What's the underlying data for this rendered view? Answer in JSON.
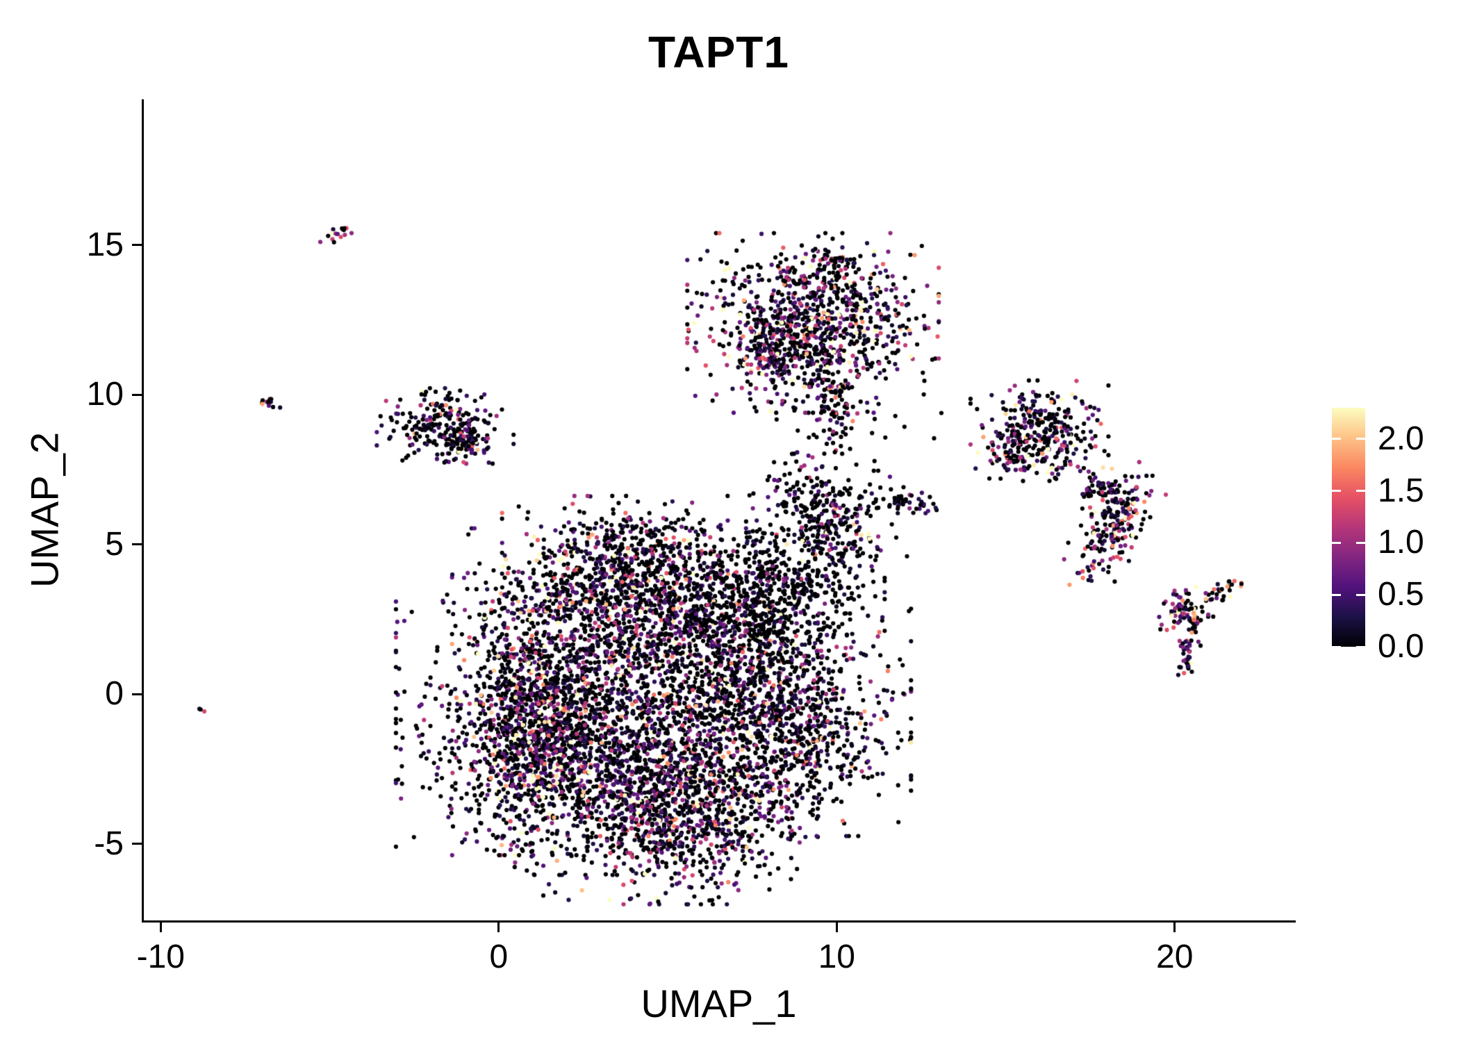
{
  "title": "TAPT1",
  "axes": {
    "xlabel": "UMAP_1",
    "ylabel": "UMAP_2",
    "xticks": [
      "-10",
      "0",
      "10",
      "20"
    ],
    "xtick_values": [
      -10,
      0,
      10,
      20
    ],
    "yticks": [
      "-5",
      "0",
      "5",
      "10",
      "15"
    ],
    "ytick_values": [
      -5,
      0,
      5,
      10,
      15
    ]
  },
  "colorbar": {
    "tick_labels": [
      "2.0",
      "1.5",
      "1.0",
      "0.5",
      "0.0"
    ],
    "tick_values": [
      2.0,
      1.5,
      1.0,
      0.5,
      0.0
    ],
    "vmin": 0.0,
    "vmax": 2.3,
    "colormap": [
      "#000004",
      "#1d1147",
      "#51127c",
      "#822681",
      "#b63679",
      "#e65164",
      "#fb8861",
      "#fec287",
      "#fcfdbf"
    ]
  },
  "chart_data": {
    "type": "scatter",
    "title": "TAPT1",
    "xlabel": "UMAP_1",
    "ylabel": "UMAP_2",
    "xlim": [
      -10.5,
      23.52
    ],
    "ylim": [
      -7.56,
      19.87
    ],
    "legend_position": "right",
    "grid": false,
    "color_scale": "magma",
    "seed": 42,
    "point_radius": 3.1,
    "clusters": [
      {
        "name": "main-core",
        "cx": 3.2,
        "cy": -1.0,
        "rx": 2.6,
        "ry": 2.1,
        "n": 2200,
        "zero_frac": 0.52,
        "mean": 0.62
      },
      {
        "name": "main-lower-lobe",
        "cx": 5.4,
        "cy": -3.9,
        "rx": 1.7,
        "ry": 1.3,
        "n": 900,
        "zero_frac": 0.42,
        "mean": 0.8
      },
      {
        "name": "main-left-edge",
        "cx": 1.0,
        "cy": -1.3,
        "rx": 1.0,
        "ry": 1.7,
        "n": 700,
        "zero_frac": 0.45,
        "mean": 0.85
      },
      {
        "name": "main-upper-band",
        "cx": 3.9,
        "cy": 2.9,
        "rx": 2.2,
        "ry": 1.1,
        "n": 900,
        "zero_frac": 0.45,
        "mean": 0.75
      },
      {
        "name": "main-top-cap",
        "cx": 3.7,
        "cy": 4.7,
        "rx": 1.5,
        "ry": 0.8,
        "n": 420,
        "zero_frac": 0.5,
        "mean": 0.7
      },
      {
        "name": "main-right-connector",
        "cx": 6.9,
        "cy": 1.4,
        "rx": 1.1,
        "ry": 1.7,
        "n": 480,
        "zero_frac": 0.55,
        "mean": 0.6
      },
      {
        "name": "right-lobe",
        "cx": 8.6,
        "cy": -0.9,
        "rx": 1.5,
        "ry": 1.6,
        "n": 800,
        "zero_frac": 0.55,
        "mean": 0.65
      },
      {
        "name": "dark-cluster-mid",
        "cx": 8.3,
        "cy": 3.4,
        "rx": 1.3,
        "ry": 1.0,
        "n": 430,
        "zero_frac": 0.7,
        "mean": 0.5
      },
      {
        "name": "small-upper-mid",
        "cx": 9.8,
        "cy": 5.6,
        "rx": 0.95,
        "ry": 0.85,
        "n": 280,
        "zero_frac": 0.6,
        "mean": 0.7
      },
      {
        "name": "bridge-right",
        "cx": 12.2,
        "cy": 6.4,
        "rx": 0.7,
        "ry": 0.2,
        "n": 45,
        "zero_frac": 0.6,
        "mean": 0.5
      },
      {
        "name": "bridge-main-upper",
        "cx": 8.9,
        "cy": 6.8,
        "rx": 0.5,
        "ry": 0.7,
        "n": 40,
        "zero_frac": 0.55,
        "mean": 0.7
      },
      {
        "name": "top-middle",
        "cx": 9.3,
        "cy": 12.4,
        "rx": 1.55,
        "ry": 1.25,
        "n": 950,
        "zero_frac": 0.42,
        "mean": 0.85
      },
      {
        "name": "top-middle-tail",
        "cx": 8.0,
        "cy": 11.2,
        "rx": 0.45,
        "ry": 0.75,
        "n": 110,
        "zero_frac": 0.45,
        "mean": 0.8
      },
      {
        "name": "top-middle-spur",
        "cx": 9.9,
        "cy": 9.6,
        "rx": 0.3,
        "ry": 0.8,
        "n": 70,
        "zero_frac": 0.55,
        "mean": 0.6
      },
      {
        "name": "top-middle-peak",
        "cx": 9.9,
        "cy": 14.4,
        "rx": 0.25,
        "ry": 0.35,
        "n": 40,
        "zero_frac": 0.5,
        "mean": 0.7
      },
      {
        "name": "left-cluster",
        "cx": -1.6,
        "cy": 8.9,
        "rx": 0.85,
        "ry": 0.55,
        "n": 230,
        "zero_frac": 0.55,
        "mean": 0.6
      },
      {
        "name": "left-cluster-foot",
        "cx": -0.9,
        "cy": 8.3,
        "rx": 0.3,
        "ry": 0.25,
        "n": 50,
        "zero_frac": 0.45,
        "mean": 0.8
      },
      {
        "name": "tiny-left",
        "cx": -6.8,
        "cy": 9.7,
        "rx": 0.18,
        "ry": 0.12,
        "n": 14,
        "zero_frac": 0.5,
        "mean": 0.7
      },
      {
        "name": "tiny-top-left",
        "cx": -4.75,
        "cy": 15.4,
        "rx": 0.25,
        "ry": 0.1,
        "rot": 0.4,
        "n": 16,
        "zero_frac": 0.25,
        "mean": 1.1
      },
      {
        "name": "singleton-left",
        "cx": -8.8,
        "cy": -0.45,
        "rx": 0.08,
        "ry": 0.06,
        "n": 3,
        "zero_frac": 0.3,
        "mean": 1.0
      },
      {
        "name": "right-cluster-upper",
        "cx": 16.0,
        "cy": 8.8,
        "rx": 0.85,
        "ry": 0.7,
        "n": 300,
        "zero_frac": 0.45,
        "mean": 0.8
      },
      {
        "name": "right-cluster-upper-tail",
        "cx": 15.2,
        "cy": 7.9,
        "rx": 0.3,
        "ry": 0.45,
        "n": 50,
        "zero_frac": 0.5,
        "mean": 0.7
      },
      {
        "name": "right-cluster-mid",
        "cx": 18.2,
        "cy": 5.6,
        "rx": 0.45,
        "ry": 0.95,
        "rot": -0.35,
        "n": 200,
        "zero_frac": 0.4,
        "mean": 0.9
      },
      {
        "name": "right-cluster-mid-top",
        "cx": 17.8,
        "cy": 6.9,
        "rx": 0.28,
        "ry": 0.3,
        "n": 50,
        "zero_frac": 0.45,
        "mean": 0.8
      },
      {
        "name": "small-far-right",
        "cx": 20.3,
        "cy": 2.7,
        "rx": 0.35,
        "ry": 0.45,
        "n": 90,
        "zero_frac": 0.35,
        "mean": 1.0
      },
      {
        "name": "small-far-right-tail",
        "cx": 20.35,
        "cy": 1.3,
        "rx": 0.12,
        "ry": 0.35,
        "n": 30,
        "zero_frac": 0.4,
        "mean": 0.9
      },
      {
        "name": "far-right-dash",
        "cx": 21.5,
        "cy": 3.5,
        "rx": 0.35,
        "ry": 0.12,
        "rot": 0.45,
        "n": 28,
        "zero_frac": 0.45,
        "mean": 0.9
      },
      {
        "name": "sparse-noise-upper",
        "cx": 10.3,
        "cy": 8.8,
        "rx": 1.2,
        "ry": 0.9,
        "n": 35,
        "zero_frac": 0.7,
        "mean": 0.5
      }
    ]
  }
}
